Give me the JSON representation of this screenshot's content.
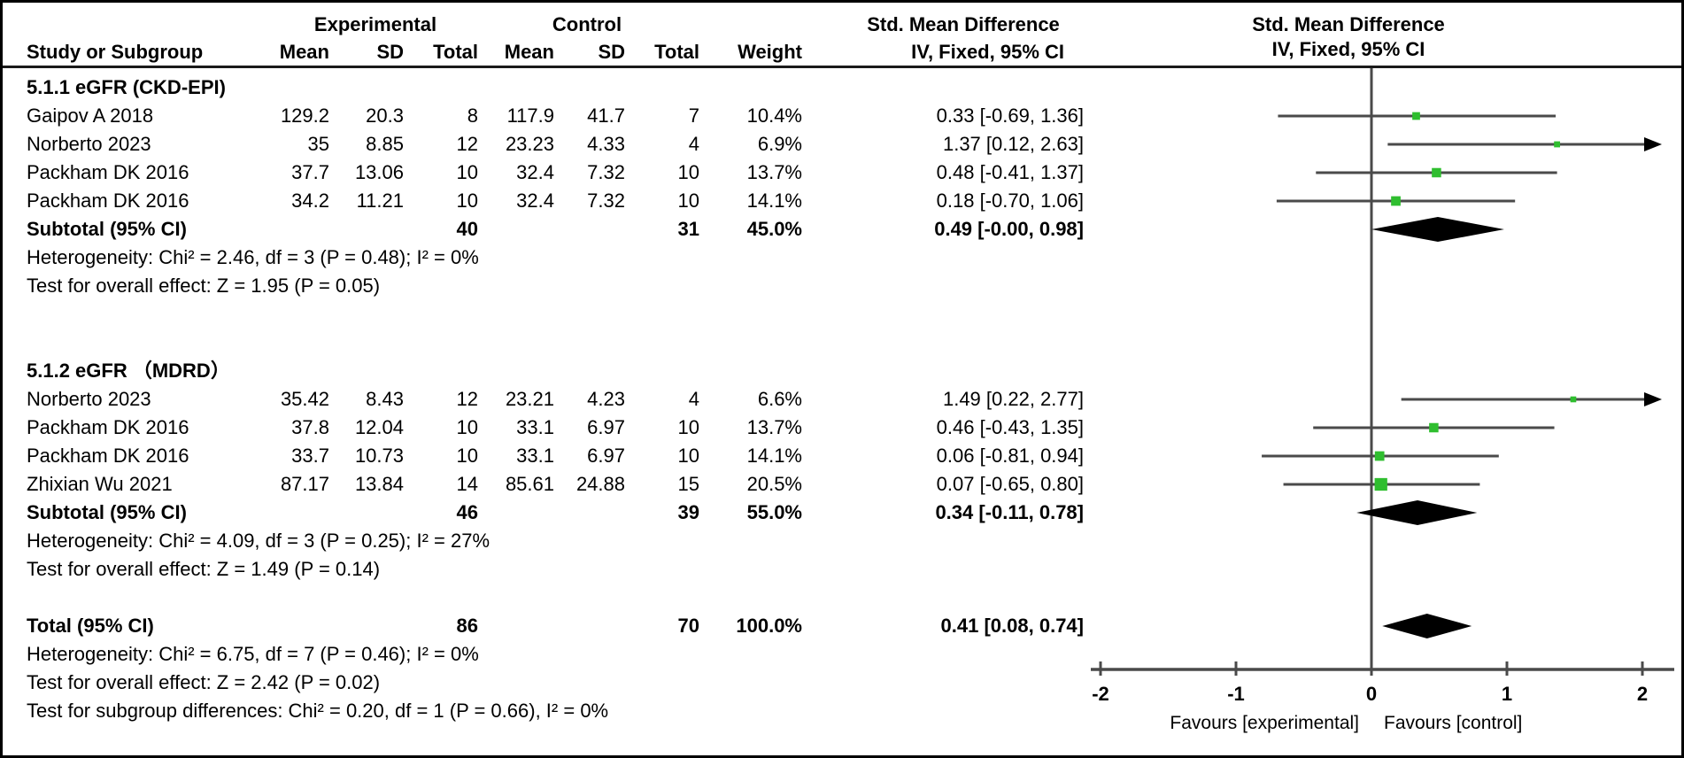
{
  "header": {
    "study_col": "Study or Subgroup",
    "experimental": "Experimental",
    "control": "Control",
    "mean": "Mean",
    "sd": "SD",
    "total": "Total",
    "weight": "Weight",
    "smd_title": "Std. Mean Difference",
    "smd_sub": "IV, Fixed, 95% CI",
    "plot_title": "Std. Mean Difference",
    "plot_sub": "IV, Fixed, 95% CI"
  },
  "sg1": {
    "title": "5.1.1 eGFR (CKD-EPI)",
    "studies": [
      {
        "name": "Gaipov A 2018",
        "mean_e": "129.2",
        "sd_e": "20.3",
        "total_e": "8",
        "mean_c": "117.9",
        "sd_c": "41.7",
        "total_c": "7",
        "weight": "10.4%",
        "smd": "0.33 [-0.69, 1.36]"
      },
      {
        "name": "Norberto 2023",
        "mean_e": "35",
        "sd_e": "8.85",
        "total_e": "12",
        "mean_c": "23.23",
        "sd_c": "4.33",
        "total_c": "4",
        "weight": "6.9%",
        "smd": "1.37 [0.12, 2.63]"
      },
      {
        "name": "Packham DK 2016",
        "mean_e": "37.7",
        "sd_e": "13.06",
        "total_e": "10",
        "mean_c": "32.4",
        "sd_c": "7.32",
        "total_c": "10",
        "weight": "13.7%",
        "smd": "0.48 [-0.41, 1.37]"
      },
      {
        "name": "Packham DK 2016",
        "mean_e": "34.2",
        "sd_e": "11.21",
        "total_e": "10",
        "mean_c": "32.4",
        "sd_c": "7.32",
        "total_c": "10",
        "weight": "14.1%",
        "smd": "0.18 [-0.70, 1.06]"
      }
    ],
    "subtotal": {
      "label": "Subtotal (95% CI)",
      "total_e": "40",
      "total_c": "31",
      "weight": "45.0%",
      "smd": "0.49 [-0.00, 0.98]"
    },
    "heterogeneity": "Heterogeneity: Chi² = 2.46, df = 3 (P = 0.48); I² = 0%",
    "overall": "Test for overall effect: Z = 1.95 (P = 0.05)"
  },
  "sg2": {
    "title": "5.1.2 eGFR （MDRD）",
    "studies": [
      {
        "name": "Norberto 2023",
        "mean_e": "35.42",
        "sd_e": "8.43",
        "total_e": "12",
        "mean_c": "23.21",
        "sd_c": "4.23",
        "total_c": "4",
        "weight": "6.6%",
        "smd": "1.49 [0.22, 2.77]"
      },
      {
        "name": "Packham DK 2016",
        "mean_e": "37.8",
        "sd_e": "12.04",
        "total_e": "10",
        "mean_c": "33.1",
        "sd_c": "6.97",
        "total_c": "10",
        "weight": "13.7%",
        "smd": "0.46 [-0.43, 1.35]"
      },
      {
        "name": "Packham DK 2016",
        "mean_e": "33.7",
        "sd_e": "10.73",
        "total_e": "10",
        "mean_c": "33.1",
        "sd_c": "6.97",
        "total_c": "10",
        "weight": "14.1%",
        "smd": "0.06 [-0.81, 0.94]"
      },
      {
        "name": "Zhixian Wu 2021",
        "mean_e": "87.17",
        "sd_e": "13.84",
        "total_e": "14",
        "mean_c": "85.61",
        "sd_c": "24.88",
        "total_c": "15",
        "weight": "20.5%",
        "smd": "0.07 [-0.65, 0.80]"
      }
    ],
    "subtotal": {
      "label": "Subtotal (95% CI)",
      "total_e": "46",
      "total_c": "39",
      "weight": "55.0%",
      "smd": "0.34 [-0.11, 0.78]"
    },
    "heterogeneity": "Heterogeneity: Chi² = 4.09, df = 3 (P = 0.25); I² = 27%",
    "overall": "Test for overall effect: Z = 1.49 (P = 0.14)"
  },
  "totals": {
    "label": "Total (95% CI)",
    "total_e": "86",
    "total_c": "70",
    "weight": "100.0%",
    "smd": "0.41 [0.08, 0.74]",
    "heterogeneity": "Heterogeneity: Chi² = 6.75, df = 7 (P = 0.46); I² = 0%",
    "overall": "Test for overall effect: Z = 2.42 (P = 0.02)",
    "subgroup_diff": "Test for subgroup differences: Chi² = 0.20, df = 1 (P = 0.66), I² = 0%"
  },
  "chart_data": {
    "type": "forest",
    "effect_measure": "Std. Mean Difference (IV, Fixed, 95% CI)",
    "x_axis": {
      "ticks": [
        -2,
        -1,
        0,
        1,
        2
      ],
      "min": -2.15,
      "max": 2.2,
      "favours_left": "Favours [experimental]",
      "favours_right": "Favours [control]"
    },
    "marker_color": "#2FBE2F",
    "line_color": "#4a4a4a",
    "studies": [
      {
        "row": 1,
        "label": "Gaipov A 2018",
        "est": 0.33,
        "lo": -0.69,
        "hi": 1.36,
        "weight": 10.4
      },
      {
        "row": 2,
        "label": "Norberto 2023",
        "est": 1.37,
        "lo": 0.12,
        "hi": 2.63,
        "weight": 6.9
      },
      {
        "row": 3,
        "label": "Packham DK 2016",
        "est": 0.48,
        "lo": -0.41,
        "hi": 1.37,
        "weight": 13.7
      },
      {
        "row": 4,
        "label": "Packham DK 2016",
        "est": 0.18,
        "lo": -0.7,
        "hi": 1.06,
        "weight": 14.1
      },
      {
        "row": 11,
        "label": "Norberto 2023",
        "est": 1.49,
        "lo": 0.22,
        "hi": 2.77,
        "weight": 6.6
      },
      {
        "row": 12,
        "label": "Packham DK 2016",
        "est": 0.46,
        "lo": -0.43,
        "hi": 1.35,
        "weight": 13.7
      },
      {
        "row": 13,
        "label": "Packham DK 2016",
        "est": 0.06,
        "lo": -0.81,
        "hi": 0.94,
        "weight": 14.1
      },
      {
        "row": 14,
        "label": "Zhixian Wu 2021",
        "est": 0.07,
        "lo": -0.65,
        "hi": 0.8,
        "weight": 20.5
      }
    ],
    "diamonds": [
      {
        "row": 5,
        "label": "Subtotal 5.1.1",
        "center": 0.49,
        "lo": 0.0,
        "hi": 0.98
      },
      {
        "row": 15,
        "label": "Subtotal 5.1.2",
        "center": 0.34,
        "lo": -0.11,
        "hi": 0.78
      },
      {
        "row": 19,
        "label": "Total",
        "center": 0.41,
        "lo": 0.08,
        "hi": 0.74
      }
    ]
  }
}
